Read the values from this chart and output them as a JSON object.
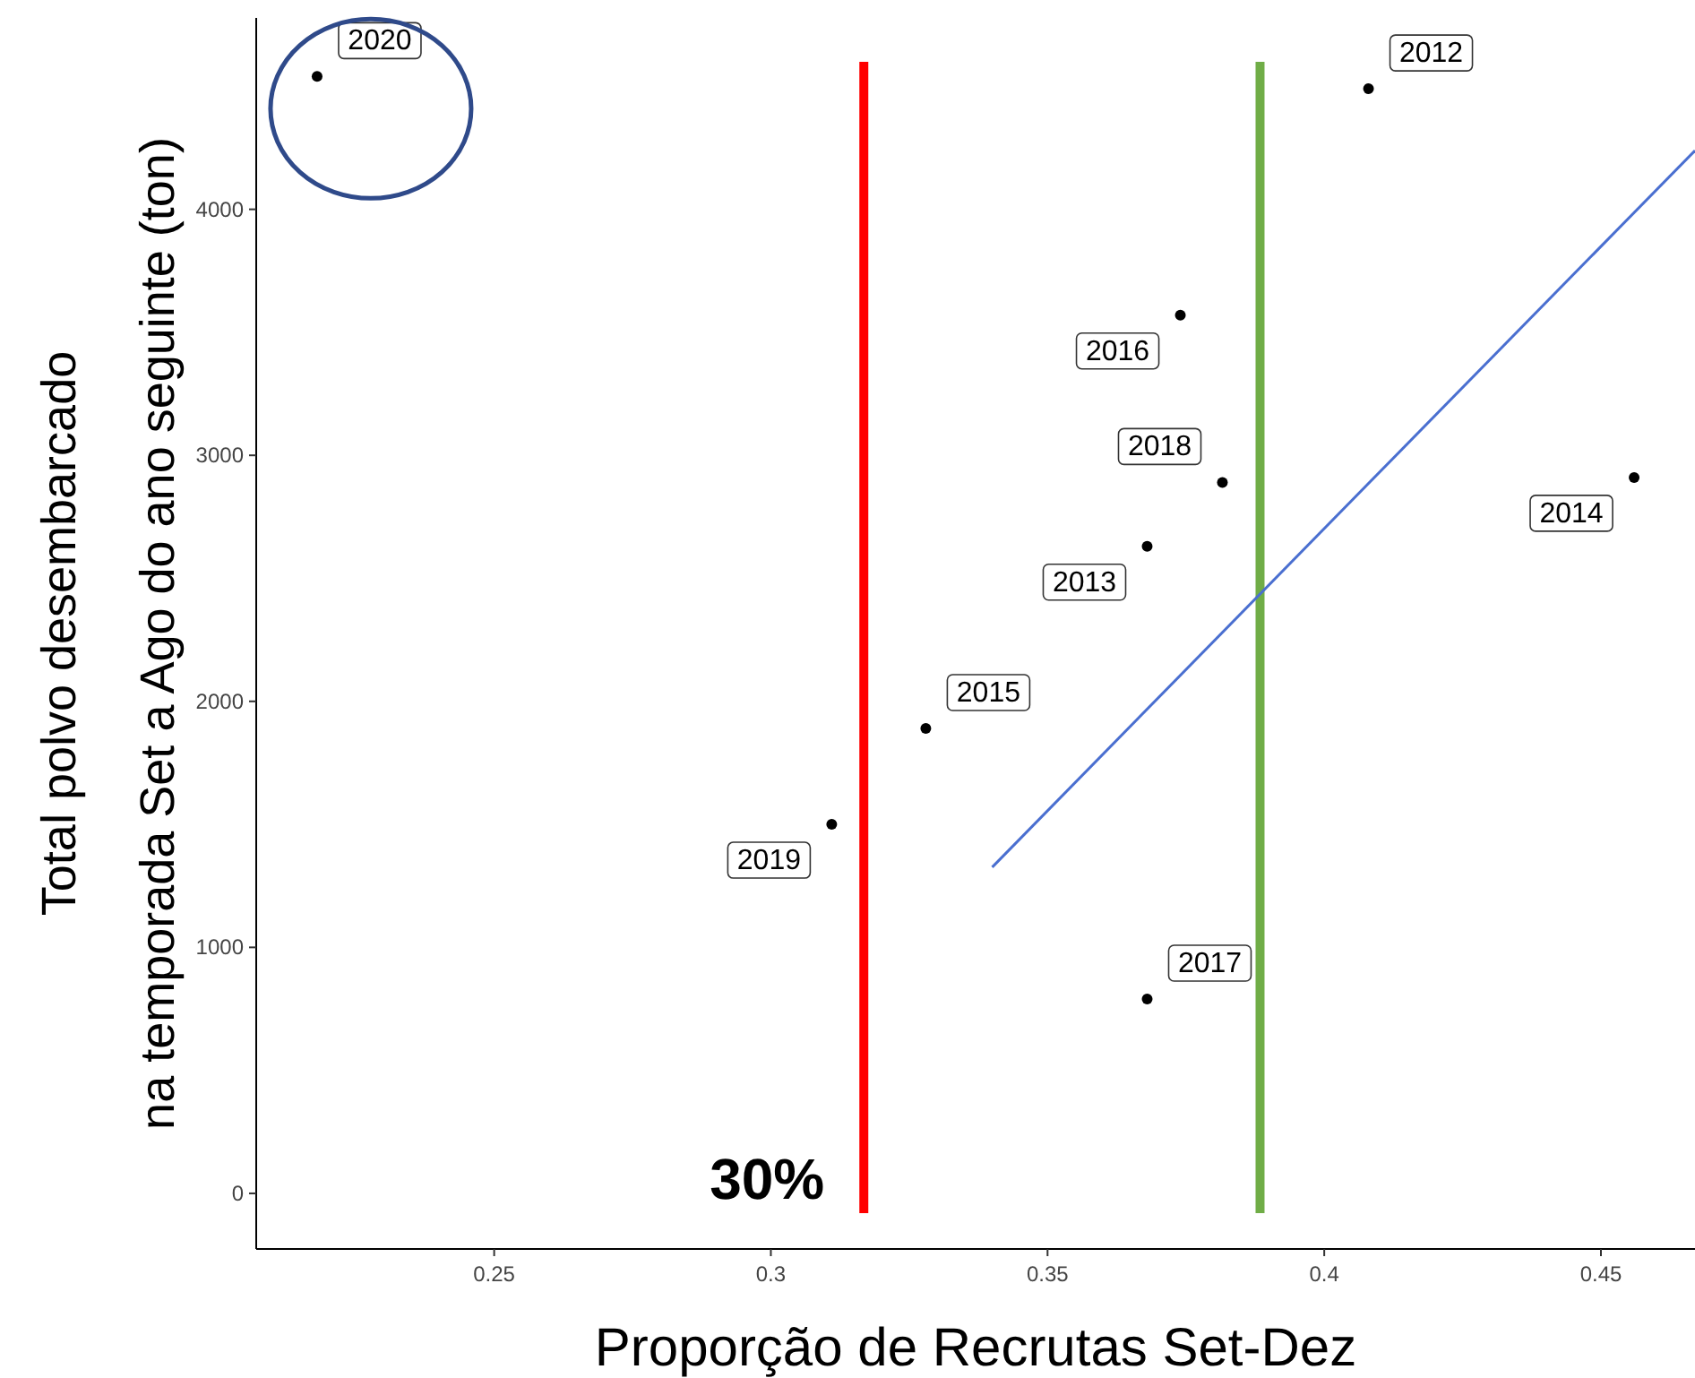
{
  "chart_data": {
    "type": "scatter",
    "xlabel": "Proporção de Recrutas Set-Dez",
    "ylabel": "Total polvo desembarcado\nna temporada Set a Ago do ano seguinte (ton)",
    "xlim": [
      0.207,
      0.467
    ],
    "ylim": [
      -226,
      4778
    ],
    "xticks": [
      0.25,
      0.3,
      0.35,
      0.4,
      0.45
    ],
    "yticks": [
      0,
      1000,
      2000,
      3000,
      4000
    ],
    "grid": false,
    "marker": "circle",
    "series": [
      {
        "color": "#000000",
        "x": [
          0.218,
          0.408,
          0.374,
          0.3816,
          0.456,
          0.368,
          0.328,
          0.311,
          0.368
        ],
        "values": [
          4540,
          4490,
          3570,
          2890,
          2910,
          2630,
          1890,
          1500,
          790
        ]
      },
      {
        "type": "line",
        "marker": "none",
        "color": "#4a6fd0",
        "x": [
          0.34,
          0.467
        ],
        "values": [
          1326,
          4239
        ]
      }
    ],
    "ref_lines": [
      {
        "axis": "x",
        "value": 0.3168,
        "color": "#ff0000"
      },
      {
        "axis": "x",
        "value": 0.3884,
        "color": "#70ad47"
      }
    ],
    "annotations": [
      {
        "text": "2020",
        "x": 0.218,
        "y": 4540
      },
      {
        "text": "2012",
        "x": 0.408,
        "y": 4490
      },
      {
        "text": "2016",
        "x": 0.374,
        "y": 3570
      },
      {
        "text": "2018",
        "x": 0.3816,
        "y": 2890
      },
      {
        "text": "2014",
        "x": 0.456,
        "y": 2910
      },
      {
        "text": "2013",
        "x": 0.368,
        "y": 2630
      },
      {
        "text": "2015",
        "x": 0.328,
        "y": 1890
      },
      {
        "text": "2019",
        "x": 0.311,
        "y": 1500
      },
      {
        "text": "2017",
        "x": 0.368,
        "y": 790
      },
      "30%"
    ]
  }
}
